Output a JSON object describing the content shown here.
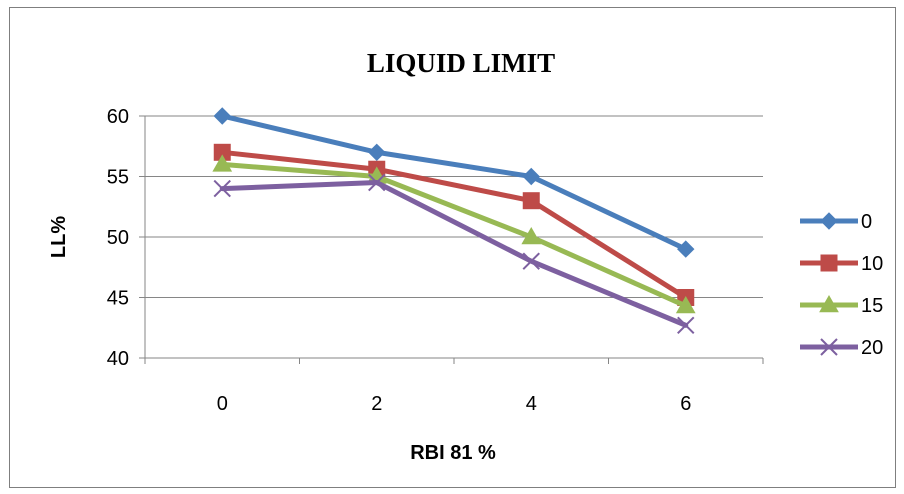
{
  "chart_data": {
    "type": "line",
    "title": "LIQUID LIMIT",
    "xlabel": "RBI 81 %",
    "ylabel": "LL%",
    "categories": [
      "0",
      "2",
      "4",
      "6"
    ],
    "yticks": [
      "40",
      "45",
      "50",
      "55",
      "60"
    ],
    "ylim": [
      40,
      60
    ],
    "grid": true,
    "legend_position": "right",
    "series": [
      {
        "name": "0",
        "values": [
          60,
          57,
          55,
          49
        ],
        "color": "#4A7EBB",
        "marker": "diamond"
      },
      {
        "name": "10",
        "values": [
          57,
          55.6,
          53,
          45
        ],
        "color": "#BE4B48",
        "marker": "square"
      },
      {
        "name": "15",
        "values": [
          56,
          55,
          50,
          44.3
        ],
        "color": "#98B954",
        "marker": "triangle"
      },
      {
        "name": "20",
        "values": [
          54,
          54.5,
          48,
          42.7
        ],
        "color": "#7D60A0",
        "marker": "x"
      }
    ]
  }
}
